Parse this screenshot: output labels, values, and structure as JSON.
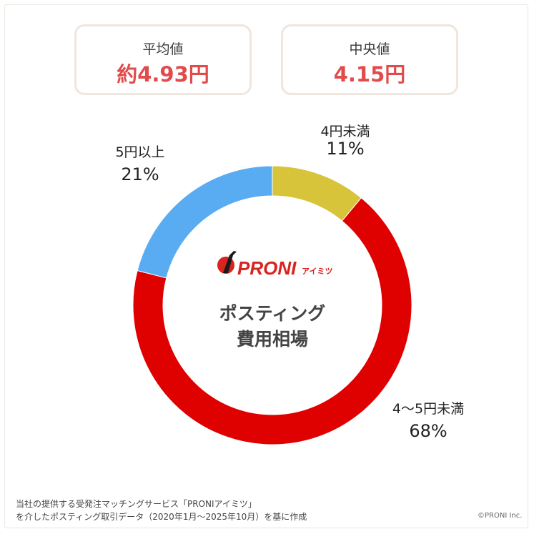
{
  "stats": {
    "average": {
      "label": "平均値",
      "value": "約4.93円"
    },
    "median": {
      "label": "中央値",
      "value": "4.15円"
    }
  },
  "chart_data": {
    "type": "pie",
    "categories": [
      "4円未満",
      "4〜5円未満",
      "5円以上"
    ],
    "values": [
      11,
      68,
      21
    ],
    "value_labels": [
      "11%",
      "68%",
      "21%"
    ],
    "colors": [
      "#d8c43a",
      "#df0000",
      "#5aacf2"
    ],
    "center_text": [
      "ポスティング",
      "費用相場"
    ]
  },
  "logo": {
    "brand": "PRONI",
    "sub": "アイミツ",
    "brand_color": "#d8231f"
  },
  "footnote": [
    "当社の提供する受発注マッチングサービス「PRONIアイミツ」",
    "を介したポスティング取引データ（2020年1月〜2025年10月）を基に作成"
  ],
  "copyright": "©PRONI Inc."
}
